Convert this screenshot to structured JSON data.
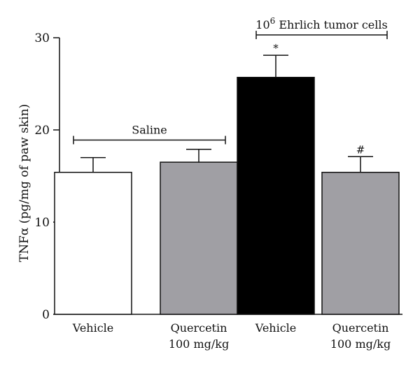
{
  "chart_data": {
    "type": "bar",
    "ylabel": "TNFα (pg/mg of paw skin)",
    "ylim": [
      0,
      30
    ],
    "yticks": [
      0,
      10,
      20,
      30
    ],
    "categories": [
      [
        "Vehicle",
        ""
      ],
      [
        "Quercetin",
        "100 mg/kg"
      ],
      [
        "Vehicle",
        ""
      ],
      [
        "Quercetin",
        "100 mg/kg"
      ]
    ],
    "values": [
      15.4,
      16.5,
      25.7,
      15.4
    ],
    "errors": [
      1.6,
      1.4,
      2.4,
      1.7
    ],
    "bar_colors": [
      "#ffffff",
      "#a09fa4",
      "#000000",
      "#a09fa4"
    ],
    "significance_marks": [
      "",
      "",
      "*",
      "#"
    ],
    "groups": [
      {
        "label": "Saline",
        "bars": [
          0,
          1
        ],
        "y": 18.9
      },
      {
        "label_base": "10",
        "label_sup": "6",
        "label_rest": " Ehrlich tumor cells",
        "bars": [
          2,
          3
        ],
        "y": 30.3
      }
    ],
    "grid": false,
    "legend": "none"
  }
}
